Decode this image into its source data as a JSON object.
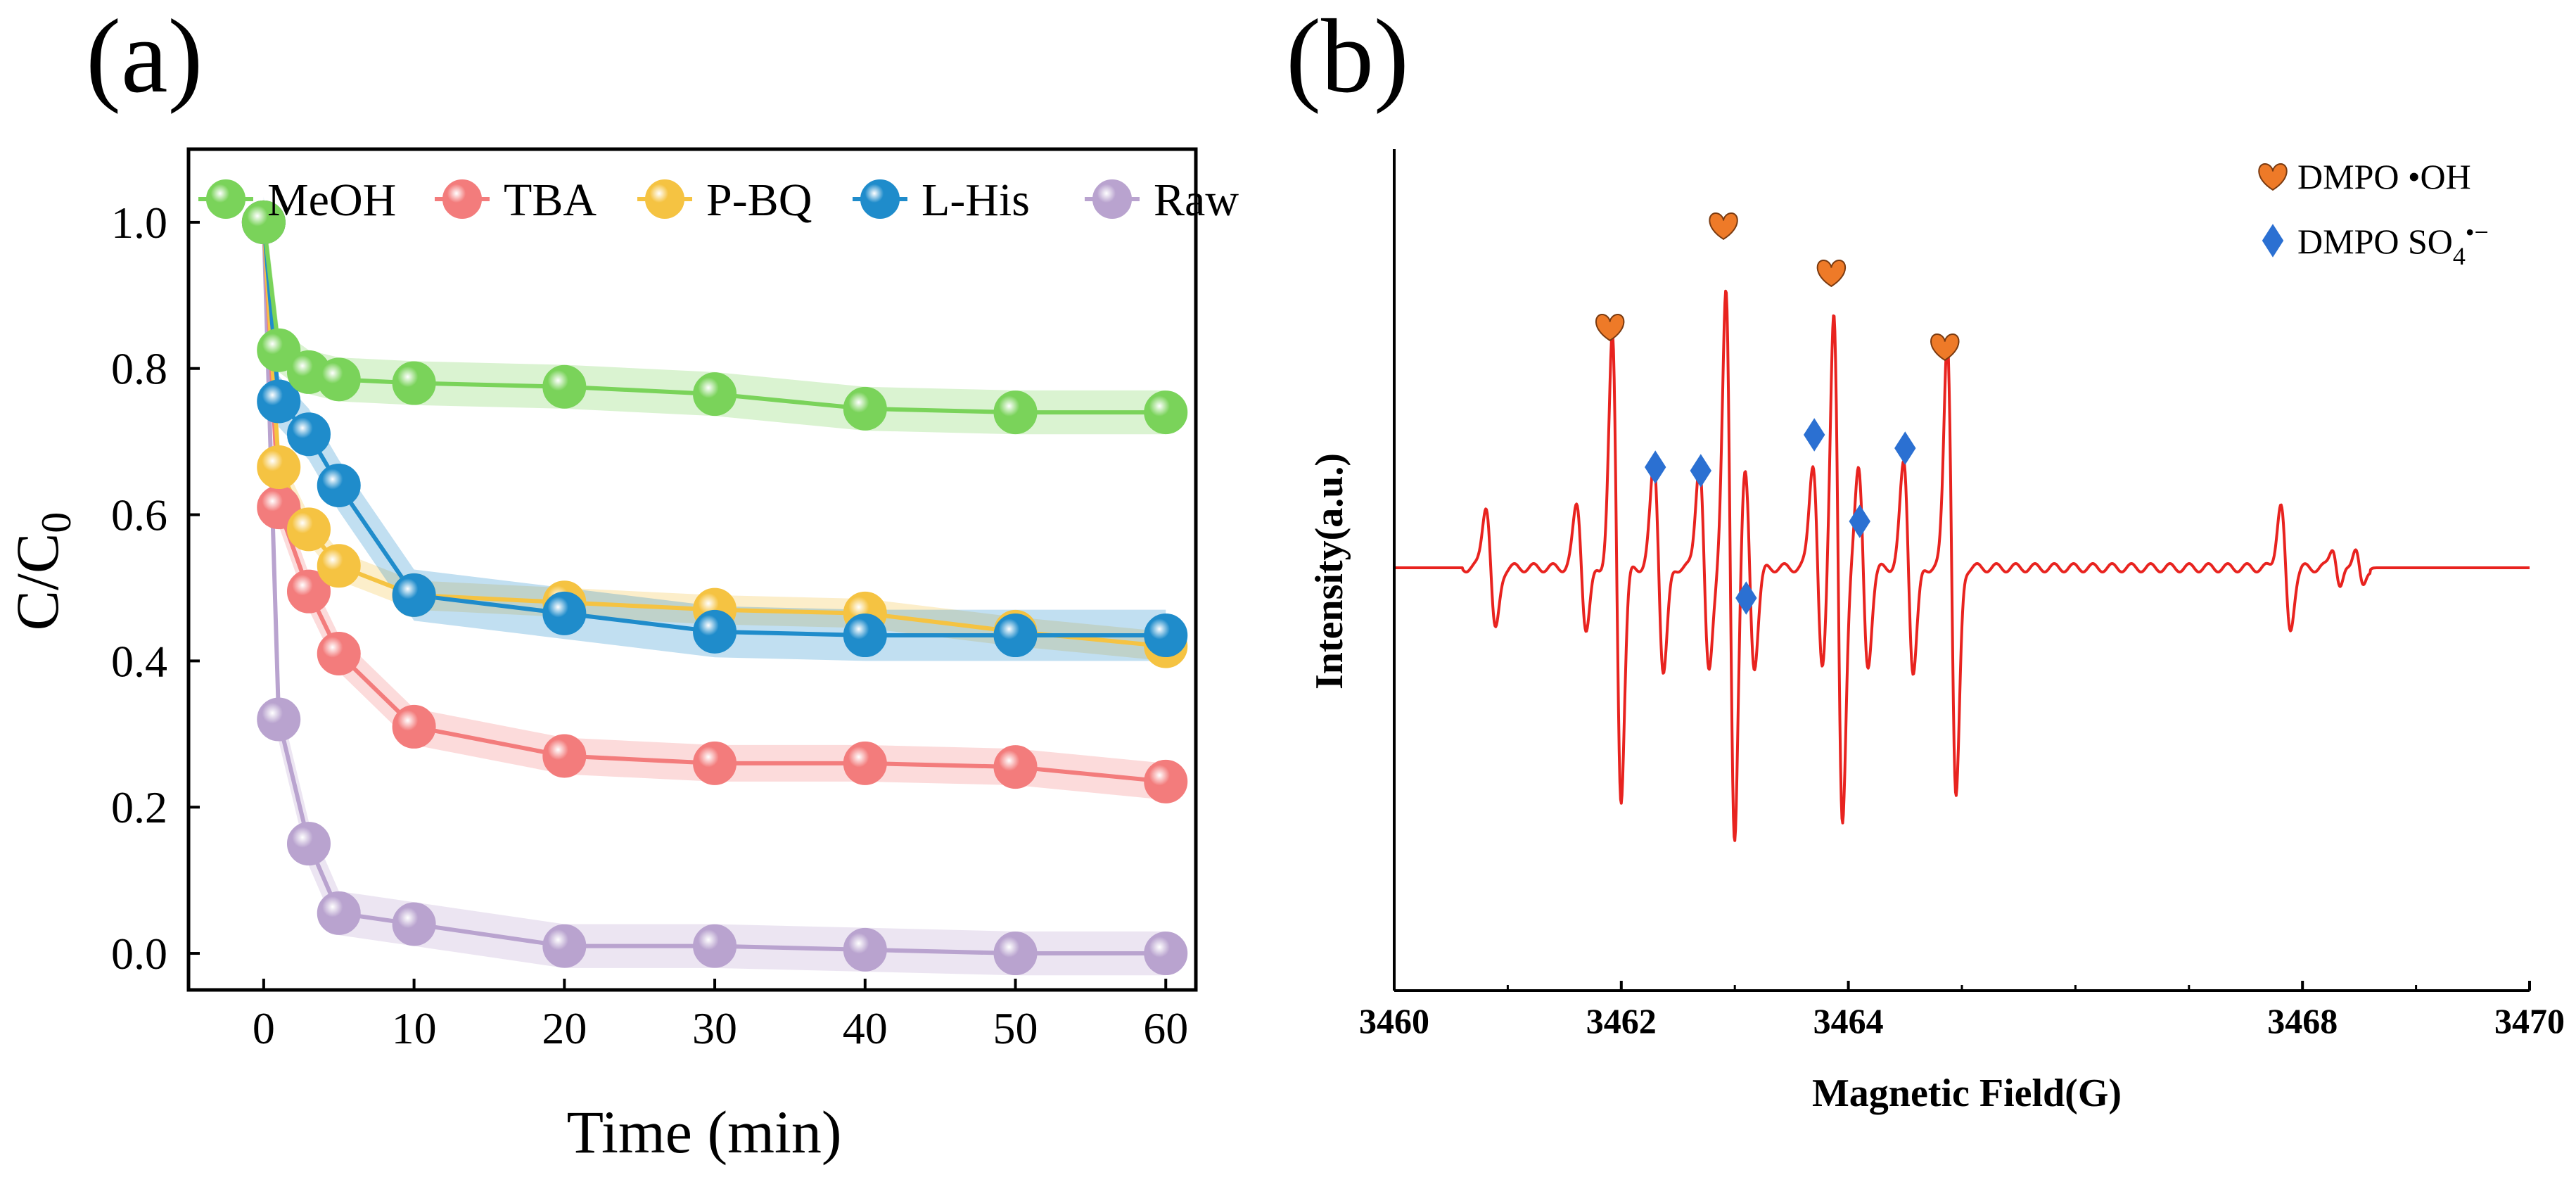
{
  "panels": {
    "a": "(a)",
    "b": "(b)"
  },
  "chart_data": [
    {
      "type": "line",
      "panel": "(a)",
      "xlabel": "Time (min)",
      "ylabel_main": "C/C",
      "ylabel_sub": "0",
      "xlim": [
        -5,
        62
      ],
      "ylim": [
        -0.05,
        1.1
      ],
      "xticks": [
        0,
        10,
        20,
        30,
        40,
        50,
        60
      ],
      "yticks": [
        0.0,
        0.2,
        0.4,
        0.6,
        0.8,
        1.0
      ],
      "ytick_labels": [
        "0.0",
        "0.2",
        "0.4",
        "0.6",
        "0.8",
        "1.0"
      ],
      "legend_position": "top",
      "series": [
        {
          "name": "MeOH",
          "color": "#7ad35a",
          "x": [
            0,
            1,
            3,
            5,
            10,
            20,
            30,
            40,
            50,
            60
          ],
          "y": [
            1.0,
            0.825,
            0.795,
            0.785,
            0.78,
            0.775,
            0.765,
            0.745,
            0.74,
            0.74
          ],
          "band": 0.03
        },
        {
          "name": "TBA",
          "color": "#f37c7c",
          "x": [
            0,
            1,
            3,
            5,
            10,
            20,
            30,
            40,
            50,
            60
          ],
          "y": [
            1.0,
            0.61,
            0.495,
            0.41,
            0.31,
            0.27,
            0.26,
            0.26,
            0.255,
            0.235
          ],
          "band": 0.025
        },
        {
          "name": "P-BQ",
          "color": "#f5c342",
          "x": [
            0,
            1,
            3,
            5,
            10,
            20,
            30,
            40,
            50,
            60
          ],
          "y": [
            1.0,
            0.665,
            0.58,
            0.53,
            0.49,
            0.48,
            0.47,
            0.465,
            0.44,
            0.42
          ],
          "band": 0.02
        },
        {
          "name": "L-His",
          "color": "#1f8ccb",
          "x": [
            0,
            1,
            3,
            5,
            10,
            20,
            30,
            40,
            50,
            60
          ],
          "y": [
            1.0,
            0.755,
            0.71,
            0.64,
            0.49,
            0.465,
            0.44,
            0.435,
            0.435,
            0.435
          ],
          "band": 0.035
        },
        {
          "name": "Raw",
          "color": "#b9a3cf",
          "x": [
            0,
            1,
            3,
            5,
            10,
            20,
            30,
            40,
            50,
            60
          ],
          "y": [
            1.0,
            0.32,
            0.15,
            0.055,
            0.04,
            0.01,
            0.01,
            0.005,
            0.0,
            0.0
          ],
          "band": 0.03
        }
      ]
    },
    {
      "type": "line",
      "panel": "(b)",
      "xlabel": "Magnetic Field(G)",
      "ylabel": "Intensity(a.u.)",
      "xlim": [
        3460,
        3470
      ],
      "xticks": [
        3460,
        3462,
        3464,
        3468,
        3470
      ],
      "xtick_labels": [
        "3460",
        "3462",
        "3464",
        "3468",
        "3470"
      ],
      "line_color": "#e8231f",
      "legend_position": "top-right",
      "legend": [
        {
          "marker": "heart",
          "color": "#ee7a28",
          "label": "DMPO •OH"
        },
        {
          "marker": "diamond",
          "color": "#2b70d2",
          "label_main": "DMPO SO",
          "label_sub": "4",
          "label_sup": "•−"
        }
      ],
      "peaks_oh": [
        3461.9,
        3462.9,
        3463.85,
        3464.85
      ],
      "peaks_so4": [
        3462.3,
        3462.7,
        3463.1,
        3463.7,
        3464.1,
        3464.5
      ]
    }
  ]
}
